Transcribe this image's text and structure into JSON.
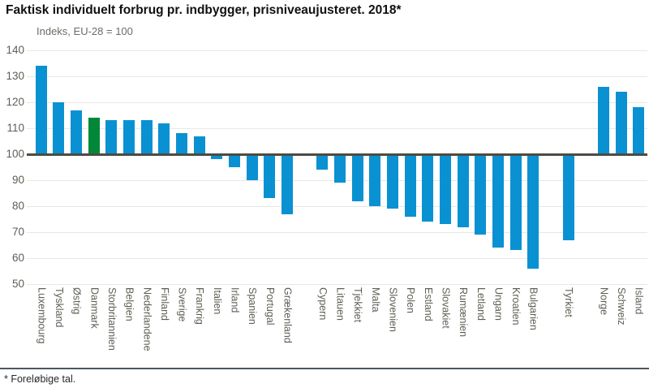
{
  "header": {
    "title": "Faktisk individuelt forbrug pr. indbygger, prisniveaujusteret. 2018*",
    "subtitle": "Indeks, EU-28 = 100"
  },
  "footnote": "* Foreløbige tal.",
  "colors": {
    "bar": "#0a91d2",
    "highlight_bar": "#008738",
    "gridline": "#e8e8e2",
    "zero_line": "#4b4b46",
    "axis_text": "#5e5e56",
    "separator": "#4e575f"
  },
  "chart_data": {
    "type": "bar",
    "title": "Faktisk individuelt forbrug pr. indbygger, prisniveaujusteret. 2018*",
    "subtitle": "Indeks, EU-28 = 100",
    "ylabel": "Indeks, EU-28 = 100",
    "xlabel": "",
    "ylim": [
      50,
      140
    ],
    "baseline": 100,
    "y_ticks": [
      140,
      130,
      120,
      110,
      100,
      90,
      80,
      70,
      60,
      50
    ],
    "grid": true,
    "legend": "none",
    "highlight_category": "Danmark",
    "bars": [
      {
        "label": "Luxembourg",
        "value": 134
      },
      {
        "label": "Tyskland",
        "value": 120
      },
      {
        "label": "Østrig",
        "value": 117
      },
      {
        "label": "Danmark",
        "value": 114,
        "highlight": true
      },
      {
        "label": "Storbritannien",
        "value": 113
      },
      {
        "label": "Belgien",
        "value": 113
      },
      {
        "label": "Nederlandene",
        "value": 113
      },
      {
        "label": "Finland",
        "value": 112
      },
      {
        "label": "Sverige",
        "value": 108
      },
      {
        "label": "Frankrig",
        "value": 107
      },
      {
        "label": "Italien",
        "value": 98
      },
      {
        "label": "Irland",
        "value": 95
      },
      {
        "label": "Spanien",
        "value": 90
      },
      {
        "label": "Portugal",
        "value": 83
      },
      {
        "label": "Grækenland",
        "value": 77
      },
      {
        "spacer": true
      },
      {
        "label": "Cypern",
        "value": 94
      },
      {
        "label": "Litauen",
        "value": 89
      },
      {
        "label": "Tjekkiet",
        "value": 82
      },
      {
        "label": "Malta",
        "value": 80
      },
      {
        "label": "Slovenien",
        "value": 79
      },
      {
        "label": "Polen",
        "value": 76
      },
      {
        "label": "Estland",
        "value": 74
      },
      {
        "label": "Slovakiet",
        "value": 73
      },
      {
        "label": "Rumænien",
        "value": 72
      },
      {
        "label": "Letland",
        "value": 69
      },
      {
        "label": "Ungarn",
        "value": 64
      },
      {
        "label": "Kroatien",
        "value": 63
      },
      {
        "label": "Bulgarien",
        "value": 56
      },
      {
        "spacer": true
      },
      {
        "label": "Tyrkiet",
        "value": 67
      },
      {
        "spacer": true
      },
      {
        "label": "Norge",
        "value": 126
      },
      {
        "label": "Schweiz",
        "value": 124
      },
      {
        "label": "Island",
        "value": 118
      }
    ]
  }
}
